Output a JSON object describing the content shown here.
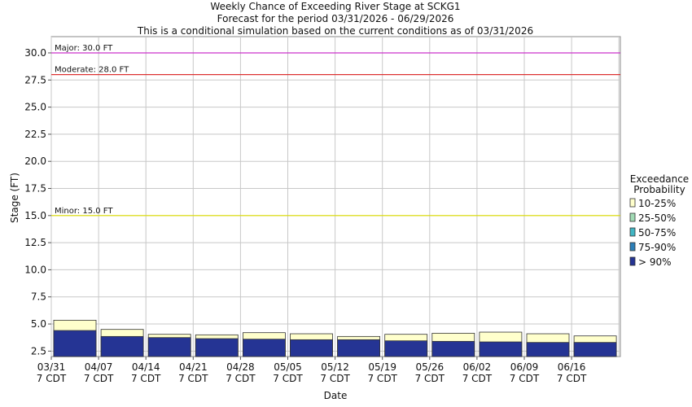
{
  "chart_data": {
    "type": "bar",
    "title_lines": [
      "Weekly Chance of Exceeding River Stage at SCKG1",
      "Forecast for the period 03/31/2026 - 06/29/2026",
      "This is a conditional simulation based on the current conditions as of 03/31/2026"
    ],
    "xlabel": "Date",
    "ylabel": "Stage (FT)",
    "ylim": [
      2.0,
      31.5
    ],
    "yticks": [
      "2.5",
      "5.0",
      "7.5",
      "10.0",
      "12.5",
      "15.0",
      "17.5",
      "20.0",
      "22.5",
      "25.0",
      "27.5",
      "30.0"
    ],
    "grid": true,
    "weeks": [
      {
        "date": "03/31",
        "sub": "7 CDT"
      },
      {
        "date": "04/07",
        "sub": "7 CDT"
      },
      {
        "date": "04/14",
        "sub": "7 CDT"
      },
      {
        "date": "04/21",
        "sub": "7 CDT"
      },
      {
        "date": "04/28",
        "sub": "7 CDT"
      },
      {
        "date": "05/05",
        "sub": "7 CDT"
      },
      {
        "date": "05/12",
        "sub": "7 CDT"
      },
      {
        "date": "05/19",
        "sub": "7 CDT"
      },
      {
        "date": "05/26",
        "sub": "7 CDT"
      },
      {
        "date": "06/02",
        "sub": "7 CDT"
      },
      {
        "date": "06/09",
        "sub": "7 CDT"
      },
      {
        "date": "06/16",
        "sub": "7 CDT"
      }
    ],
    "series": [
      {
        "name": "10-25%",
        "color": "#ffffcc",
        "values": [
          5.35,
          4.5,
          4.05,
          4.0,
          4.2,
          4.1,
          3.85,
          4.05,
          4.15,
          4.25,
          4.1,
          3.9
        ]
      },
      {
        "name": "> 90%",
        "color": "#253494",
        "values": [
          4.4,
          3.85,
          3.75,
          3.65,
          3.6,
          3.55,
          3.55,
          3.45,
          3.4,
          3.35,
          3.3,
          3.3
        ]
      }
    ],
    "thresholds": [
      {
        "label": "Major: 30.0 FT",
        "value": 30.0,
        "color": "#cc33cc"
      },
      {
        "label": "Moderate: 28.0 FT",
        "value": 28.0,
        "color": "#dd3333"
      },
      {
        "label": "Minor: 15.0 FT",
        "value": 15.0,
        "color": "#dddd00"
      }
    ],
    "legend": {
      "title_lines": [
        "Exceedance",
        "Probability"
      ],
      "placement": "right",
      "entries": [
        {
          "label": "10-25%",
          "color": "#ffffcc"
        },
        {
          "label": "25-50%",
          "color": "#a1dab4"
        },
        {
          "label": "50-75%",
          "color": "#41b6c4"
        },
        {
          "label": "75-90%",
          "color": "#2c7fb8"
        },
        {
          "label": "> 90%",
          "color": "#253494"
        }
      ]
    }
  }
}
